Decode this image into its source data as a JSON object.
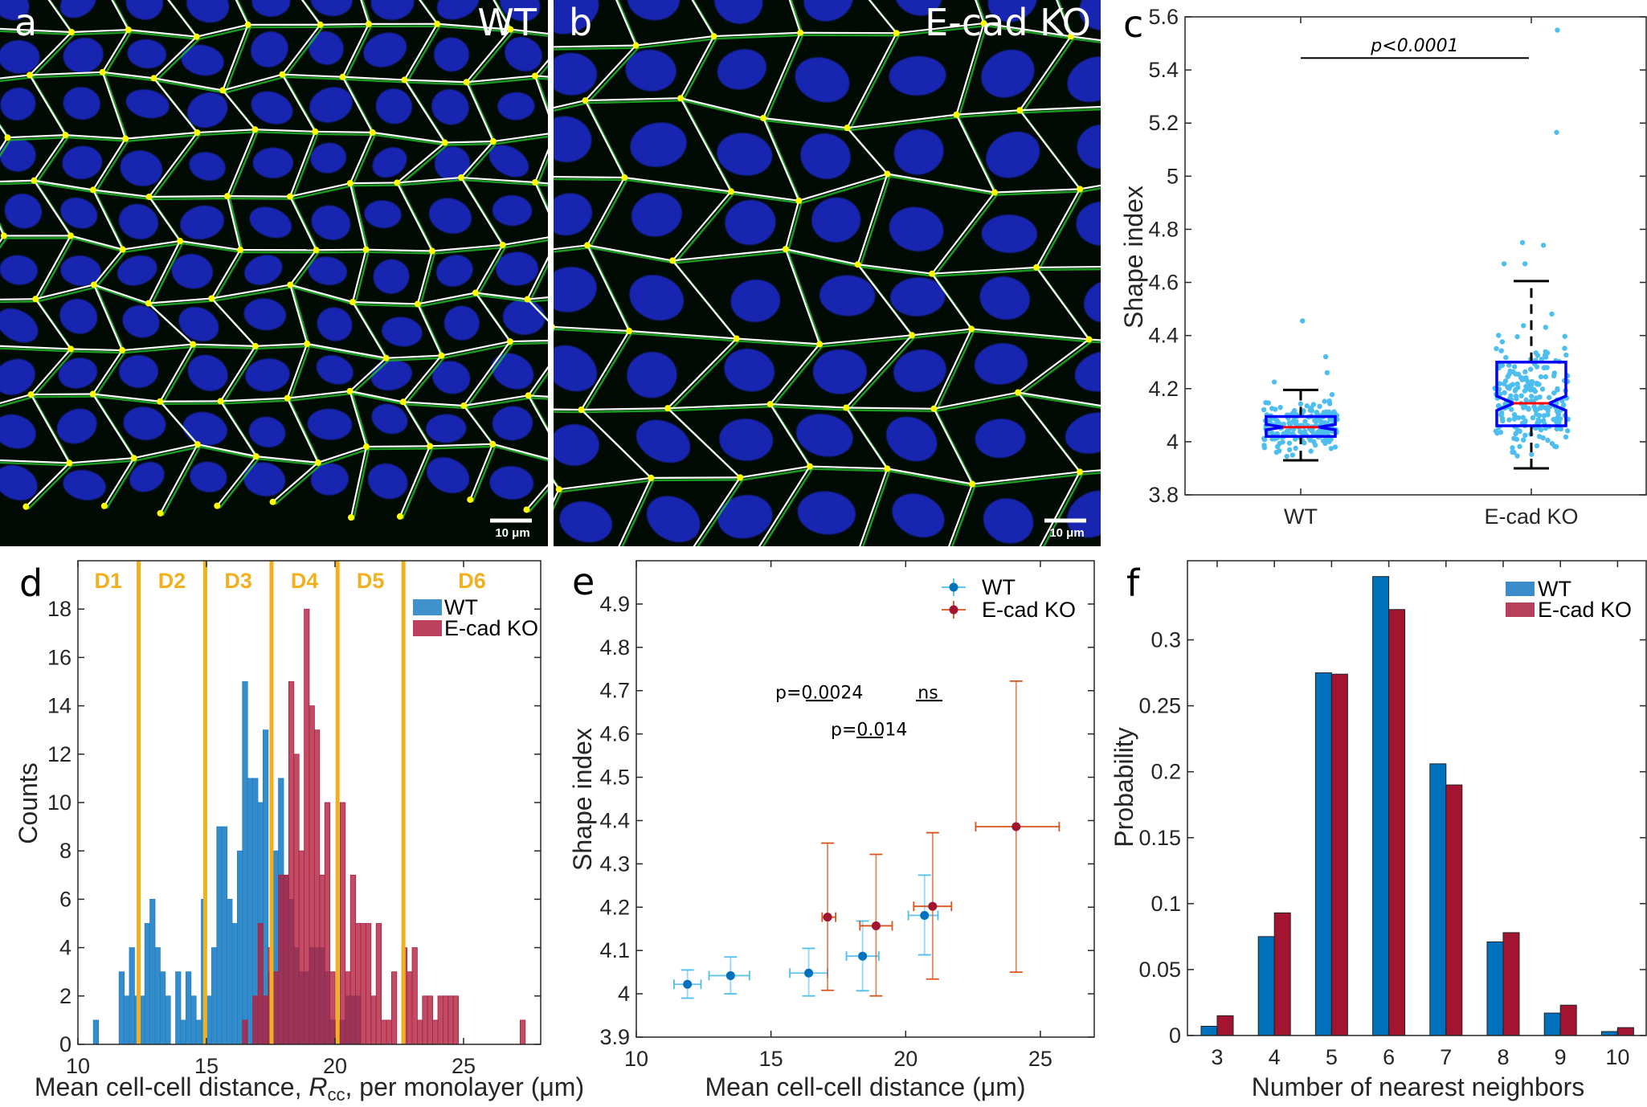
{
  "panels": {
    "a": {
      "letter": "a",
      "label": "WT",
      "scale_bar": "10 μm"
    },
    "b": {
      "letter": "b",
      "label": "E-cad KO",
      "scale_bar": "10 μm"
    }
  },
  "colors": {
    "wt_dark": "#0072bd",
    "wt_light": "#4dbeee",
    "ko_dark": "#a2142f",
    "ko_light": "#d95319",
    "hist_wt": "#1f7fc4",
    "hist_ko": "#b0203f",
    "band_line": "#f0b020",
    "box": "#0000ff",
    "median": "#ff0000",
    "nuclei": "#1a2ad0",
    "membrane": "#22c02a",
    "vertex": "#ffff00"
  },
  "chart_data": [
    {
      "panel": "c",
      "letter": "c",
      "type": "box",
      "categories": [
        "WT",
        "E-cad KO"
      ],
      "ylabel": "Shape index",
      "ylim": [
        3.8,
        5.6
      ],
      "yticks": [
        "3.8",
        "4",
        "4.2",
        "4.4",
        "4.6",
        "4.8",
        "5",
        "5.2",
        "5.4",
        "5.6"
      ],
      "boxes": [
        {
          "name": "WT",
          "q1": 4.02,
          "median": 4.055,
          "q3": 4.095,
          "notch_low": 4.045,
          "notch_high": 4.065,
          "whisker_low": 3.93,
          "whisker_high": 4.195,
          "outliers": [
            4.455,
            4.32,
            4.26,
            4.225
          ]
        },
        {
          "name": "E-cad KO",
          "q1": 4.06,
          "median": 4.145,
          "q3": 4.3,
          "notch_low": 4.118,
          "notch_high": 4.172,
          "whisker_low": 3.9,
          "whisker_high": 4.605,
          "outliers": [
            5.55,
            5.165,
            4.75,
            4.74,
            4.67,
            4.67
          ]
        }
      ],
      "annotation": "p<0.0001"
    },
    {
      "panel": "d",
      "letter": "d",
      "type": "bar",
      "xlabel": "Mean cell-cell distance, R_cc, per monolayer (μm)",
      "xlabel_parts": [
        "Mean cell-cell distance, ",
        "R",
        "cc",
        ", per monolayer (μm)"
      ],
      "ylabel": "Counts",
      "xlim": [
        10,
        28
      ],
      "ylim": [
        0,
        20
      ],
      "xticks": [
        "10",
        "15",
        "20",
        "25"
      ],
      "yticks": [
        "0",
        "2",
        "4",
        "6",
        "8",
        "10",
        "12",
        "14",
        "16",
        "18"
      ],
      "bin_width": 0.2,
      "legend": "top-right",
      "series": [
        {
          "name": "WT",
          "bins": [
            [
              10.6,
              1
            ],
            [
              11.6,
              3
            ],
            [
              11.8,
              2
            ],
            [
              12.0,
              4
            ],
            [
              12.2,
              2
            ],
            [
              12.4,
              2
            ],
            [
              12.6,
              5
            ],
            [
              12.8,
              6
            ],
            [
              13.0,
              4
            ],
            [
              13.2,
              3
            ],
            [
              13.4,
              2
            ],
            [
              13.8,
              3
            ],
            [
              14.0,
              1
            ],
            [
              14.2,
              3
            ],
            [
              14.4,
              2
            ],
            [
              14.6,
              1
            ],
            [
              14.8,
              6
            ],
            [
              15.0,
              2
            ],
            [
              15.2,
              4
            ],
            [
              15.4,
              9
            ],
            [
              15.6,
              9
            ],
            [
              15.8,
              6
            ],
            [
              16.0,
              5
            ],
            [
              16.2,
              8
            ],
            [
              16.4,
              15
            ],
            [
              16.6,
              11
            ],
            [
              16.8,
              11
            ],
            [
              17.0,
              10
            ],
            [
              17.2,
              13
            ],
            [
              17.4,
              3
            ],
            [
              17.6,
              8
            ],
            [
              17.8,
              11
            ],
            [
              18.0,
              7
            ],
            [
              18.2,
              6
            ],
            [
              18.4,
              4
            ],
            [
              18.6,
              3
            ],
            [
              18.8,
              3
            ],
            [
              19.0,
              4
            ],
            [
              19.2,
              4
            ],
            [
              19.4,
              4
            ],
            [
              19.6,
              3
            ],
            [
              19.8,
              1
            ],
            [
              20.0,
              1
            ],
            [
              20.2,
              1
            ],
            [
              20.4,
              2
            ],
            [
              20.6,
              2
            ],
            [
              20.8,
              2
            ]
          ]
        },
        {
          "name": "E-cad KO",
          "bins": [
            [
              16.4,
              1
            ],
            [
              16.8,
              2
            ],
            [
              17.0,
              5
            ],
            [
              17.2,
              2
            ],
            [
              17.4,
              4
            ],
            [
              17.6,
              3
            ],
            [
              17.8,
              7
            ],
            [
              18.0,
              7
            ],
            [
              18.2,
              15
            ],
            [
              18.4,
              12
            ],
            [
              18.6,
              8
            ],
            [
              18.8,
              18
            ],
            [
              19.0,
              14
            ],
            [
              19.2,
              13
            ],
            [
              19.4,
              7
            ],
            [
              19.6,
              10
            ],
            [
              19.8,
              3
            ],
            [
              20.0,
              1
            ],
            [
              20.2,
              10
            ],
            [
              20.4,
              3
            ],
            [
              20.6,
              7
            ],
            [
              20.8,
              5
            ],
            [
              21.0,
              5
            ],
            [
              21.2,
              5
            ],
            [
              21.4,
              2
            ],
            [
              21.6,
              5
            ],
            [
              21.8,
              1
            ],
            [
              22.0,
              1
            ],
            [
              22.2,
              3
            ],
            [
              22.6,
              4
            ],
            [
              22.8,
              3
            ],
            [
              23.0,
              4
            ],
            [
              23.2,
              1
            ],
            [
              23.4,
              2
            ],
            [
              23.6,
              2
            ],
            [
              23.8,
              1
            ],
            [
              24.0,
              2
            ],
            [
              24.2,
              2
            ],
            [
              24.4,
              2
            ],
            [
              24.6,
              2
            ],
            [
              27.2,
              1
            ]
          ]
        }
      ],
      "bands": {
        "boundaries": [
          12.36,
          14.95,
          17.53,
          20.1,
          22.66
        ],
        "labels": [
          "D1",
          "D2",
          "D3",
          "D4",
          "D5",
          "D6"
        ]
      }
    },
    {
      "panel": "e",
      "letter": "e",
      "type": "scatter",
      "xlabel": "Mean cell-cell distance (μm)",
      "ylabel": "Shape index",
      "xlim": [
        10,
        27
      ],
      "ylim": [
        3.9,
        5.0
      ],
      "xticks": [
        "10",
        "15",
        "20",
        "25"
      ],
      "yticks": [
        "3.9",
        "4",
        "4.1",
        "4.2",
        "4.3",
        "4.4",
        "4.5",
        "4.6",
        "4.7",
        "4.8",
        "4.9"
      ],
      "legend": "top-right",
      "series": [
        {
          "name": "WT",
          "points": [
            {
              "x": 11.9,
              "y": 4.022,
              "xmin": 11.4,
              "xmax": 12.4,
              "ymin": 3.99,
              "ymax": 4.055
            },
            {
              "x": 13.5,
              "y": 4.042,
              "xmin": 12.7,
              "xmax": 14.2,
              "ymin": 4.0,
              "ymax": 4.085
            },
            {
              "x": 16.4,
              "y": 4.048,
              "xmin": 15.7,
              "xmax": 17.1,
              "ymin": 3.995,
              "ymax": 4.105
            },
            {
              "x": 18.4,
              "y": 4.087,
              "xmin": 17.8,
              "xmax": 19.0,
              "ymin": 4.007,
              "ymax": 4.168
            },
            {
              "x": 20.7,
              "y": 4.181,
              "xmin": 20.1,
              "xmax": 21.2,
              "ymin": 4.09,
              "ymax": 4.274
            }
          ]
        },
        {
          "name": "E-cad KO",
          "points": [
            {
              "x": 17.1,
              "y": 4.177,
              "xmin": 16.9,
              "xmax": 17.4,
              "ymin": 4.008,
              "ymax": 4.348
            },
            {
              "x": 18.9,
              "y": 4.157,
              "xmin": 18.3,
              "xmax": 19.5,
              "ymin": 3.995,
              "ymax": 4.322
            },
            {
              "x": 21.0,
              "y": 4.202,
              "xmin": 20.3,
              "xmax": 21.7,
              "ymin": 4.034,
              "ymax": 4.372
            },
            {
              "x": 24.1,
              "y": 4.386,
              "xmin": 22.6,
              "xmax": 25.7,
              "ymin": 4.05,
              "ymax": 4.722
            }
          ]
        }
      ],
      "annotations": [
        "p=0.0024",
        "p=0.014",
        "ns"
      ]
    },
    {
      "panel": "f",
      "letter": "f",
      "type": "bar",
      "xlabel": "Number of nearest neighbors",
      "ylabel": "Probability",
      "categories": [
        "3",
        "4",
        "5",
        "6",
        "7",
        "8",
        "9",
        "10"
      ],
      "ylim": [
        0,
        0.36
      ],
      "yticks": [
        "0",
        "0.05",
        "0.1",
        "0.15",
        "0.2",
        "0.25",
        "0.3"
      ],
      "legend": "top-right",
      "series": [
        {
          "name": "WT",
          "values": [
            0.007,
            0.075,
            0.275,
            0.348,
            0.206,
            0.071,
            0.017,
            0.003
          ]
        },
        {
          "name": "E-cad KO",
          "values": [
            0.015,
            0.093,
            0.274,
            0.323,
            0.19,
            0.078,
            0.023,
            0.006
          ]
        }
      ]
    }
  ]
}
